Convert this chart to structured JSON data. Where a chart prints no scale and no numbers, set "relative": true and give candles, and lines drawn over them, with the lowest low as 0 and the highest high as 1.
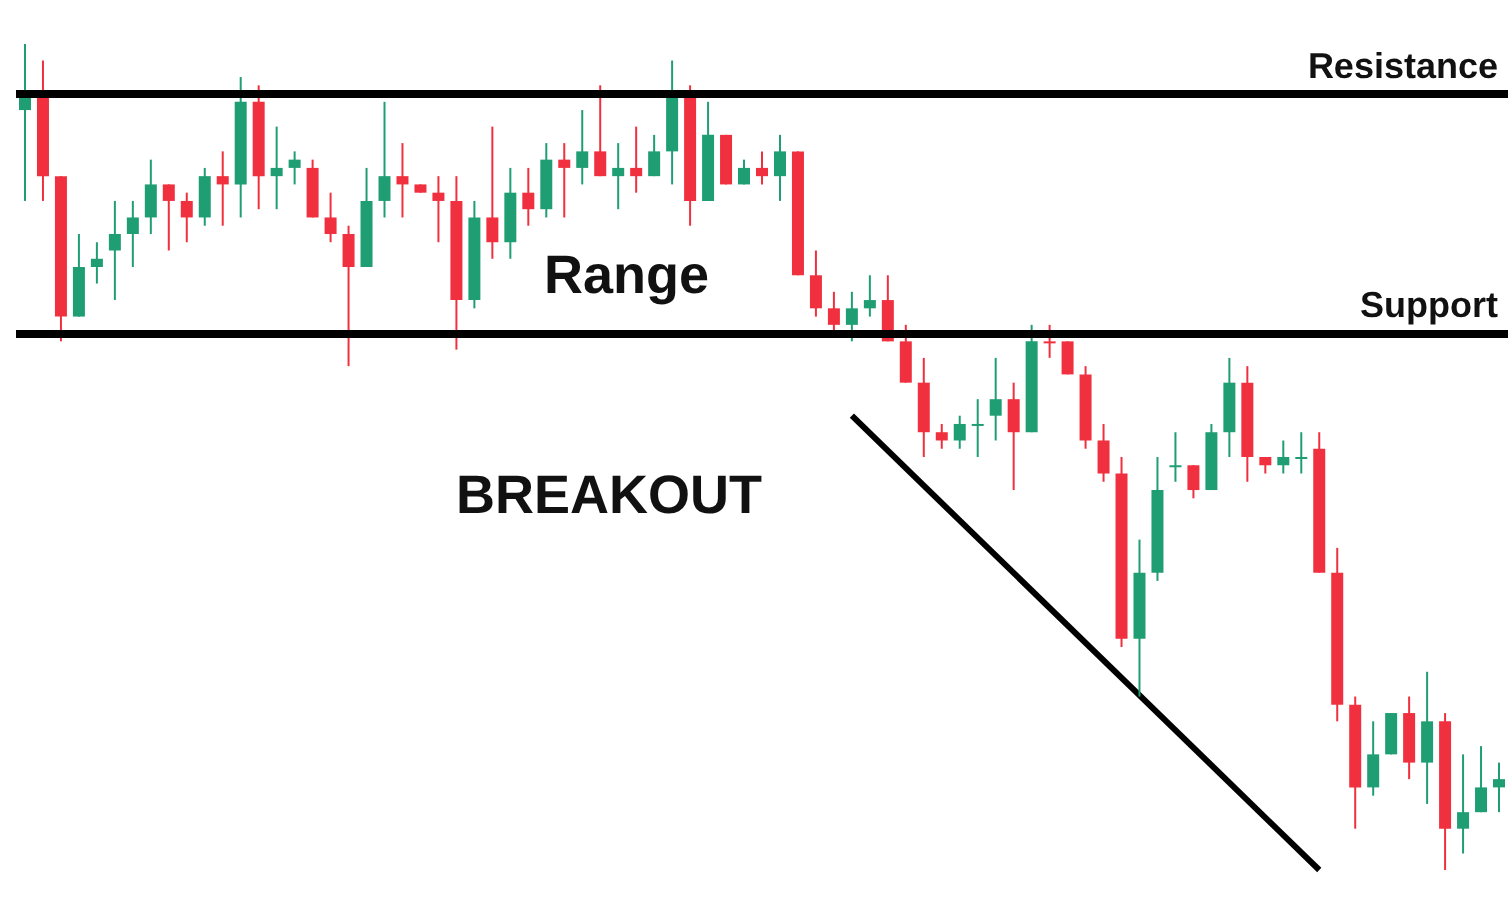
{
  "chart_data": {
    "type": "candlestick",
    "relative": true,
    "categories": [
      null,
      null,
      null,
      null,
      null,
      null,
      null,
      null,
      null,
      null,
      null,
      null,
      null,
      null,
      null,
      null,
      null,
      null,
      null,
      null,
      null,
      null,
      null,
      null,
      null,
      null,
      null,
      null,
      null,
      null,
      null,
      null,
      null,
      null,
      null,
      null,
      null,
      null,
      null,
      null,
      null,
      null,
      null,
      null,
      null,
      null,
      null,
      null,
      null,
      null,
      null,
      null,
      null,
      null,
      null,
      null,
      null,
      null,
      null,
      null,
      null,
      null,
      null,
      null,
      null,
      null,
      null,
      null,
      null,
      null,
      null,
      null,
      null,
      null,
      null,
      null,
      null,
      null,
      null,
      null,
      null,
      null,
      null
    ],
    "annotations": [
      "Range",
      "BREAKOUT"
    ],
    "ref_lines": [
      {
        "axis": "y",
        "value": 0.94,
        "label": "Resistance",
        "color": "#000000"
      },
      {
        "axis": "y",
        "value": 0.65,
        "label": "Support",
        "color": "#000000"
      }
    ],
    "series": [
      {
        "type": "candlestick",
        "colors": [
          "#1f9e74",
          "#f0303e",
          "#f0303e",
          "#1f9e74",
          "#1f9e74",
          "#1f9e74",
          "#1f9e74",
          "#1f9e74",
          "#f0303e",
          "#f0303e",
          "#1f9e74",
          "#f0303e",
          "#1f9e74",
          "#f0303e",
          "#1f9e74",
          "#1f9e74",
          "#f0303e",
          "#f0303e",
          "#f0303e",
          "#1f9e74",
          "#1f9e74",
          "#f0303e",
          "#f0303e",
          "#f0303e",
          "#f0303e",
          "#1f9e74",
          "#f0303e",
          "#1f9e74",
          "#f0303e",
          "#1f9e74",
          "#f0303e",
          "#1f9e74",
          "#f0303e",
          "#1f9e74",
          "#f0303e",
          "#1f9e74",
          "#1f9e74",
          "#f0303e",
          "#1f9e74",
          "#f0303e",
          "#1f9e74",
          "#f0303e",
          "#1f9e74",
          "#f0303e",
          "#f0303e",
          "#f0303e",
          "#1f9e74",
          "#1f9e74",
          "#f0303e",
          "#f0303e",
          "#f0303e",
          "#f0303e",
          "#1f9e74",
          "#1f9e74",
          "#1f9e74",
          "#f0303e",
          "#1f9e74",
          "#f0303e",
          "#f0303e",
          "#f0303e",
          "#f0303e",
          "#f0303e",
          "#1f9e74",
          "#1f9e74",
          "#1f9e74",
          "#f0303e",
          "#1f9e74",
          "#1f9e74",
          "#f0303e",
          "#f0303e",
          "#1f9e74",
          "#1f9e74",
          "#f0303e",
          "#f0303e",
          "#f0303e",
          "#1f9e74",
          "#1f9e74",
          "#f0303e",
          "#1f9e74",
          "#f0303e",
          "#1f9e74",
          "#1f9e74",
          "#1f9e74"
        ],
        "ohlc": [
          [
            0.92,
            1.0,
            0.81,
            0.94
          ],
          [
            0.94,
            0.98,
            0.81,
            0.84
          ],
          [
            0.84,
            0.84,
            0.64,
            0.67
          ],
          [
            0.67,
            0.77,
            0.67,
            0.73
          ],
          [
            0.73,
            0.76,
            0.71,
            0.74
          ],
          [
            0.75,
            0.81,
            0.69,
            0.77
          ],
          [
            0.77,
            0.81,
            0.73,
            0.79
          ],
          [
            0.79,
            0.86,
            0.77,
            0.83
          ],
          [
            0.83,
            0.83,
            0.75,
            0.81
          ],
          [
            0.81,
            0.82,
            0.76,
            0.79
          ],
          [
            0.79,
            0.85,
            0.78,
            0.84
          ],
          [
            0.84,
            0.87,
            0.78,
            0.83
          ],
          [
            0.83,
            0.96,
            0.79,
            0.93
          ],
          [
            0.93,
            0.95,
            0.8,
            0.84
          ],
          [
            0.84,
            0.9,
            0.8,
            0.85
          ],
          [
            0.85,
            0.87,
            0.83,
            0.86
          ],
          [
            0.85,
            0.86,
            0.79,
            0.79
          ],
          [
            0.79,
            0.82,
            0.76,
            0.77
          ],
          [
            0.77,
            0.78,
            0.61,
            0.73
          ],
          [
            0.73,
            0.85,
            0.73,
            0.81
          ],
          [
            0.81,
            0.93,
            0.79,
            0.84
          ],
          [
            0.84,
            0.88,
            0.79,
            0.83
          ],
          [
            0.83,
            0.83,
            0.82,
            0.82
          ],
          [
            0.82,
            0.84,
            0.76,
            0.81
          ],
          [
            0.81,
            0.84,
            0.63,
            0.69
          ],
          [
            0.69,
            0.81,
            0.68,
            0.79
          ],
          [
            0.79,
            0.9,
            0.74,
            0.76
          ],
          [
            0.76,
            0.85,
            0.74,
            0.82
          ],
          [
            0.82,
            0.85,
            0.78,
            0.8
          ],
          [
            0.8,
            0.88,
            0.79,
            0.86
          ],
          [
            0.86,
            0.88,
            0.79,
            0.85
          ],
          [
            0.85,
            0.92,
            0.83,
            0.87
          ],
          [
            0.87,
            0.95,
            0.84,
            0.84
          ],
          [
            0.84,
            0.88,
            0.8,
            0.85
          ],
          [
            0.85,
            0.9,
            0.82,
            0.84
          ],
          [
            0.84,
            0.89,
            0.84,
            0.87
          ],
          [
            0.87,
            0.98,
            0.83,
            0.94
          ],
          [
            0.94,
            0.95,
            0.78,
            0.81
          ],
          [
            0.81,
            0.93,
            0.81,
            0.89
          ],
          [
            0.89,
            0.89,
            0.83,
            0.83
          ],
          [
            0.83,
            0.86,
            0.83,
            0.85
          ],
          [
            0.85,
            0.87,
            0.83,
            0.84
          ],
          [
            0.84,
            0.89,
            0.81,
            0.87
          ],
          [
            0.87,
            0.87,
            0.72,
            0.72
          ],
          [
            0.72,
            0.75,
            0.67,
            0.68
          ],
          [
            0.68,
            0.7,
            0.65,
            0.66
          ],
          [
            0.66,
            0.7,
            0.64,
            0.68
          ],
          [
            0.68,
            0.72,
            0.67,
            0.69
          ],
          [
            0.69,
            0.72,
            0.64,
            0.64
          ],
          [
            0.64,
            0.66,
            0.59,
            0.59
          ],
          [
            0.59,
            0.62,
            0.5,
            0.53
          ],
          [
            0.53,
            0.54,
            0.51,
            0.52
          ],
          [
            0.52,
            0.55,
            0.51,
            0.54
          ],
          [
            0.54,
            0.57,
            0.5,
            0.54
          ],
          [
            0.55,
            0.62,
            0.52,
            0.57
          ],
          [
            0.57,
            0.59,
            0.46,
            0.53
          ],
          [
            0.53,
            0.66,
            0.53,
            0.64
          ],
          [
            0.64,
            0.66,
            0.62,
            0.64
          ],
          [
            0.64,
            0.64,
            0.6,
            0.6
          ],
          [
            0.6,
            0.61,
            0.51,
            0.52
          ],
          [
            0.52,
            0.54,
            0.47,
            0.48
          ],
          [
            0.48,
            0.5,
            0.27,
            0.28
          ],
          [
            0.28,
            0.4,
            0.21,
            0.36
          ],
          [
            0.36,
            0.5,
            0.35,
            0.46
          ],
          [
            0.49,
            0.53,
            0.47,
            0.49
          ],
          [
            0.49,
            0.49,
            0.45,
            0.46
          ],
          [
            0.46,
            0.54,
            0.46,
            0.53
          ],
          [
            0.53,
            0.62,
            0.5,
            0.59
          ],
          [
            0.59,
            0.61,
            0.47,
            0.5
          ],
          [
            0.5,
            0.5,
            0.48,
            0.49
          ],
          [
            0.49,
            0.52,
            0.48,
            0.5
          ],
          [
            0.5,
            0.53,
            0.48,
            0.5
          ],
          [
            0.51,
            0.53,
            0.36,
            0.36
          ],
          [
            0.36,
            0.39,
            0.18,
            0.2
          ],
          [
            0.2,
            0.21,
            0.05,
            0.1
          ],
          [
            0.1,
            0.18,
            0.09,
            0.14
          ],
          [
            0.14,
            0.19,
            0.14,
            0.19
          ],
          [
            0.19,
            0.21,
            0.11,
            0.13
          ],
          [
            0.13,
            0.24,
            0.08,
            0.18
          ],
          [
            0.18,
            0.19,
            0.0,
            0.05
          ],
          [
            0.05,
            0.14,
            0.02,
            0.07
          ],
          [
            0.07,
            0.15,
            0.07,
            0.1
          ],
          [
            0.1,
            0.13,
            0.07,
            0.11
          ]
        ]
      },
      {
        "type": "line",
        "color": "#000000",
        "values": [
          null,
          null,
          null,
          null,
          null,
          null,
          null,
          null,
          null,
          null,
          null,
          null,
          null,
          null,
          null,
          null,
          null,
          null,
          null,
          null,
          null,
          null,
          null,
          null,
          null,
          null,
          null,
          null,
          null,
          null,
          null,
          null,
          null,
          null,
          null,
          null,
          null,
          null,
          null,
          null,
          null,
          null,
          null,
          null,
          null,
          null,
          0.55,
          null,
          null,
          null,
          null,
          null,
          null,
          null,
          null,
          null,
          null,
          null,
          null,
          null,
          null,
          null,
          null,
          null,
          null,
          null,
          null,
          null,
          null,
          null,
          null,
          null,
          0.0,
          null,
          null,
          null,
          null,
          null,
          null,
          null,
          null,
          null,
          null
        ]
      }
    ]
  }
}
